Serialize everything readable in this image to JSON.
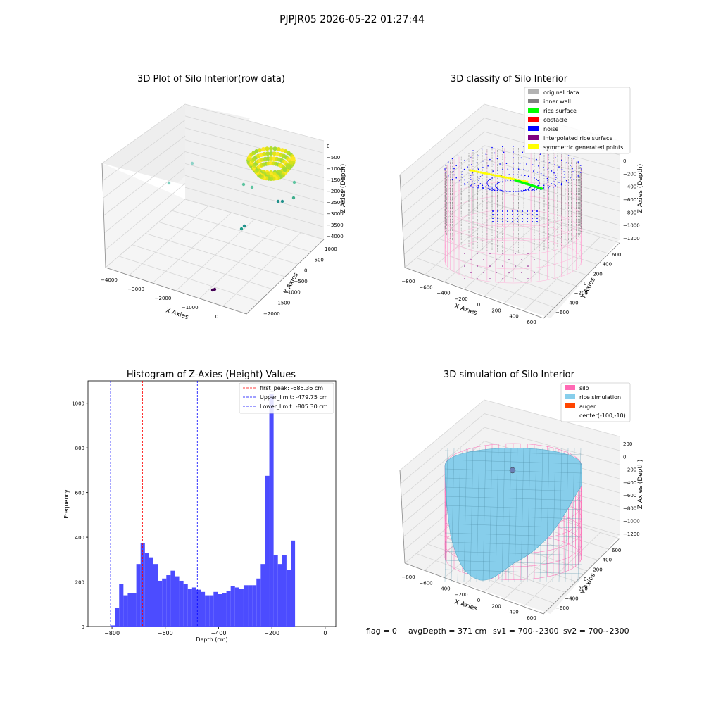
{
  "suptitle": "PJPJR05 2026-05-22 01:27:44",
  "status": {
    "flag": "flag = 0",
    "avg_depth": "avgDepth = 371 cm",
    "sv1": "sv1 = 700~2300",
    "sv2": "sv2 = 700~2300"
  },
  "chart_data": [
    {
      "type": "scatter",
      "title": "3D Plot of Silo Interior(row data)",
      "xlabel": "X Axies",
      "ylabel": "Y Axies",
      "zlabel": "Z Axies (Depth)",
      "x_ticks": [
        "−4000",
        "−3000",
        "−2000",
        "−1000",
        "0"
      ],
      "y_ticks": [
        "1000",
        "500",
        "0",
        "−500",
        "−1000",
        "−1500",
        "−2000"
      ],
      "z_ticks": [
        "0",
        "−500",
        "−1000",
        "−1500",
        "−2000",
        "−2500",
        "−3000",
        "−3500",
        "−4000"
      ],
      "colormap": "viridis",
      "xlim": [
        -4000,
        0
      ],
      "ylim": [
        -2000,
        1000
      ],
      "zlim": [
        -4000,
        0
      ]
    },
    {
      "type": "scatter",
      "title": "3D classify of Silo Interior",
      "xlabel": "X Axies",
      "ylabel": "Y Axies",
      "zlabel": "Z Axies (Depth)",
      "x_ticks": [
        "−800",
        "−600",
        "−400",
        "−200",
        "0",
        "200",
        "400",
        "600"
      ],
      "y_ticks": [
        "600",
        "400",
        "200",
        "0",
        "−200",
        "−400",
        "−600"
      ],
      "z_ticks": [
        "0",
        "−200",
        "−400",
        "−600",
        "−800",
        "−1000",
        "−1200"
      ],
      "legend_position": "top-right",
      "legend": [
        {
          "label": "original data",
          "color": "#b3b3b3"
        },
        {
          "label": "inner wall",
          "color": "#808080"
        },
        {
          "label": "rice surface",
          "color": "#00ff00"
        },
        {
          "label": "obstacle",
          "color": "#ff0000"
        },
        {
          "label": "noise",
          "color": "#0000ff"
        },
        {
          "label": "interpolated rice surface",
          "color": "#800080"
        },
        {
          "label": "symmetric generated points",
          "color": "#ffff00"
        }
      ]
    },
    {
      "type": "bar",
      "title": "Histogram of Z-Axies (Height) Values",
      "xlabel": "Depth (cm)",
      "ylabel": "Frequency",
      "xlim": [
        -890,
        40
      ],
      "ylim": [
        0,
        1100
      ],
      "x_ticks": [
        -800,
        -600,
        -400,
        -200,
        0
      ],
      "y_ticks": [
        0,
        200,
        400,
        600,
        800,
        1000
      ],
      "bar_color": "#4c4cff",
      "bin_start": -805.3,
      "bin_width": 16.1,
      "values": [
        5,
        85,
        190,
        140,
        150,
        150,
        280,
        375,
        330,
        310,
        280,
        205,
        215,
        230,
        250,
        225,
        205,
        190,
        170,
        175,
        165,
        155,
        140,
        140,
        155,
        145,
        150,
        160,
        180,
        175,
        170,
        185,
        185,
        185,
        215,
        280,
        675,
        1040,
        320,
        280,
        320,
        255,
        385
      ],
      "lines": [
        {
          "label": "first_peak: -685.36 cm",
          "x": -685.36,
          "color": "#ff0000"
        },
        {
          "label": "Upper_limit: -479.75 cm",
          "x": -479.75,
          "color": "#0000ff"
        },
        {
          "label": "Lower_limit: -805.30 cm",
          "x": -805.3,
          "color": "#0000ff"
        }
      ],
      "legend_position": "top-right"
    },
    {
      "type": "surface",
      "title": "3D simulation of Silo Interior",
      "xlabel": "X Axies",
      "ylabel": "Y Axies",
      "zlabel": "Z Axies (Depth)",
      "x_ticks": [
        "−800",
        "−600",
        "−400",
        "−200",
        "0",
        "200",
        "400",
        "600"
      ],
      "y_ticks": [
        "600",
        "400",
        "200",
        "0",
        "−200",
        "−400",
        "−600"
      ],
      "z_ticks": [
        "200",
        "0",
        "−200",
        "−400",
        "−600",
        "−800",
        "−1000",
        "−1200"
      ],
      "legend_position": "top-right",
      "legend": [
        {
          "label": "silo",
          "color": "#ff69b4"
        },
        {
          "label": "rice simulation",
          "color": "#87ceeb"
        },
        {
          "label": "auger",
          "color": "#ff4500"
        },
        {
          "label": "center(-100,-10)",
          "color": ""
        }
      ]
    }
  ]
}
